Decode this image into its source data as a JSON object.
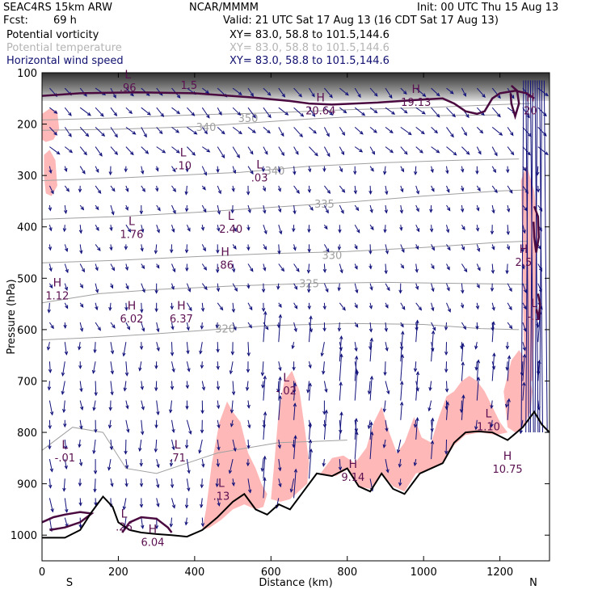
{
  "header": {
    "model": "SEAC4RS 15km ARW",
    "org": "NCAR/MMMM",
    "init": "Init: 00 UTC Thu 15 Aug 13",
    "fcst_label": "Fcst:",
    "fcst_value": "69 h",
    "valid": "Valid: 21 UTC Sat 17 Aug 13 (16 CDT Sat 17 Aug 13)",
    "fields": [
      {
        "name": "Potential vorticity",
        "xy": "XY=  83.0, 58.8 to 101.5,144.6",
        "color": "#000000"
      },
      {
        "name": "Potential temperature",
        "xy": "XY=  83.0, 58.8 to 101.5,144.6",
        "color": "#b4b4b4"
      },
      {
        "name": "Horizontal wind speed",
        "xy": "XY=  83.0, 58.8 to 101.5,144.6",
        "color": "#101070"
      }
    ]
  },
  "chart_data": {
    "type": "cross-section",
    "xlabel": "Distance (km)",
    "ylabel": "Pressure (hPa)",
    "x_range": [
      0,
      1330
    ],
    "y_range": [
      1050,
      100
    ],
    "x_ticks": [
      0,
      200,
      400,
      600,
      800,
      1000,
      1200
    ],
    "y_ticks": [
      100,
      200,
      300,
      400,
      500,
      600,
      700,
      800,
      900,
      1000
    ],
    "endpoints": {
      "left": "S",
      "right": "N"
    },
    "colors": {
      "terrain": "#000000",
      "theta": "#a0a0a0",
      "wind": "#10107a",
      "pv_line": "#4a0a40",
      "pv_label": "#5a1050",
      "shade": "#ffb8b8"
    },
    "theta_contours": [
      {
        "value": "350",
        "label_at": [
          540,
          188
        ],
        "pts": [
          [
            0,
            192
          ],
          [
            200,
            188
          ],
          [
            400,
            182
          ],
          [
            600,
            178
          ],
          [
            800,
            172
          ],
          [
            1000,
            168
          ],
          [
            1200,
            162
          ],
          [
            1280,
            160
          ]
        ]
      },
      {
        "value": "340",
        "label_at": [
          430,
          205
        ],
        "pts": [
          [
            0,
            212
          ],
          [
            200,
            210
          ],
          [
            400,
            205
          ],
          [
            600,
            195
          ],
          [
            700,
            190
          ],
          [
            800,
            186
          ],
          [
            1000,
            184
          ],
          [
            1200,
            182
          ]
        ]
      },
      {
        "value": "340",
        "label_at": [
          610,
          290
        ],
        "pts": [
          [
            0,
            310
          ],
          [
            200,
            305
          ],
          [
            400,
            298
          ],
          [
            520,
            294
          ],
          [
            700,
            282
          ],
          [
            900,
            275
          ],
          [
            1100,
            270
          ],
          [
            1250,
            268
          ]
        ]
      },
      {
        "value": "335",
        "label_at": [
          740,
          355
        ],
        "pts": [
          [
            0,
            385
          ],
          [
            200,
            380
          ],
          [
            400,
            372
          ],
          [
            600,
            362
          ],
          [
            800,
            352
          ],
          [
            1000,
            340
          ],
          [
            1200,
            330
          ],
          [
            1270,
            328
          ]
        ]
      },
      {
        "value": "330",
        "label_at": [
          760,
          455
        ],
        "pts": [
          [
            0,
            470
          ],
          [
            200,
            465
          ],
          [
            400,
            458
          ],
          [
            600,
            452
          ],
          [
            800,
            448
          ],
          [
            1000,
            440
          ],
          [
            1200,
            430
          ],
          [
            1270,
            428
          ]
        ]
      },
      {
        "value": "325",
        "label_at": [
          700,
          510
        ],
        "pts": [
          [
            0,
            548
          ],
          [
            150,
            530
          ],
          [
            300,
            522
          ],
          [
            500,
            515
          ],
          [
            700,
            510
          ],
          [
            900,
            508
          ],
          [
            1100,
            510
          ],
          [
            1270,
            512
          ]
        ]
      },
      {
        "value": "320",
        "label_at": [
          480,
          598
        ],
        "pts": [
          [
            0,
            620
          ],
          [
            150,
            615
          ],
          [
            300,
            608
          ],
          [
            450,
            600
          ],
          [
            600,
            592
          ],
          [
            800,
            588
          ],
          [
            1000,
            590
          ],
          [
            1150,
            598
          ],
          [
            1250,
            600
          ]
        ]
      },
      {
        "value": "",
        "label_at": [
          0,
          0
        ],
        "pts": [
          [
            0,
            835
          ],
          [
            80,
            790
          ],
          [
            160,
            800
          ],
          [
            220,
            870
          ],
          [
            300,
            880
          ],
          [
            380,
            860
          ],
          [
            460,
            840
          ],
          [
            540,
            830
          ],
          [
            620,
            820
          ],
          [
            700,
            818
          ],
          [
            800,
            815
          ]
        ]
      }
    ],
    "terrain": [
      [
        0,
        1005
      ],
      [
        60,
        1005
      ],
      [
        100,
        990
      ],
      [
        130,
        955
      ],
      [
        160,
        925
      ],
      [
        185,
        945
      ],
      [
        200,
        975
      ],
      [
        230,
        990
      ],
      [
        260,
        995
      ],
      [
        300,
        998
      ],
      [
        340,
        1000
      ],
      [
        380,
        1003
      ],
      [
        420,
        990
      ],
      [
        460,
        965
      ],
      [
        500,
        935
      ],
      [
        530,
        920
      ],
      [
        560,
        950
      ],
      [
        590,
        960
      ],
      [
        620,
        940
      ],
      [
        650,
        950
      ],
      [
        680,
        920
      ],
      [
        720,
        880
      ],
      [
        760,
        885
      ],
      [
        800,
        870
      ],
      [
        830,
        905
      ],
      [
        860,
        915
      ],
      [
        890,
        880
      ],
      [
        920,
        910
      ],
      [
        950,
        920
      ],
      [
        990,
        880
      ],
      [
        1020,
        870
      ],
      [
        1050,
        860
      ],
      [
        1080,
        820
      ],
      [
        1110,
        800
      ],
      [
        1140,
        798
      ],
      [
        1180,
        800
      ],
      [
        1220,
        815
      ],
      [
        1260,
        790
      ],
      [
        1290,
        760
      ],
      [
        1310,
        785
      ],
      [
        1330,
        800
      ]
    ],
    "shaded": [
      [
        [
          420,
          990
        ],
        [
          430,
          950
        ],
        [
          445,
          860
        ],
        [
          465,
          780
        ],
        [
          485,
          740
        ],
        [
          500,
          760
        ],
        [
          520,
          780
        ],
        [
          540,
          840
        ],
        [
          560,
          870
        ],
        [
          575,
          900
        ],
        [
          590,
          920
        ],
        [
          580,
          945
        ],
        [
          560,
          950
        ],
        [
          530,
          940
        ],
        [
          500,
          950
        ],
        [
          470,
          970
        ],
        [
          440,
          985
        ]
      ],
      [
        [
          600,
          930
        ],
        [
          610,
          850
        ],
        [
          620,
          760
        ],
        [
          635,
          700
        ],
        [
          655,
          680
        ],
        [
          675,
          720
        ],
        [
          690,
          800
        ],
        [
          700,
          860
        ],
        [
          695,
          900
        ],
        [
          680,
          910
        ],
        [
          650,
          930
        ],
        [
          625,
          935
        ]
      ],
      [
        [
          730,
          880
        ],
        [
          760,
          850
        ],
        [
          790,
          845
        ],
        [
          820,
          860
        ],
        [
          850,
          830
        ],
        [
          870,
          780
        ],
        [
          890,
          750
        ],
        [
          910,
          800
        ],
        [
          930,
          840
        ],
        [
          950,
          820
        ],
        [
          975,
          770
        ],
        [
          995,
          810
        ],
        [
          1020,
          820
        ],
        [
          1040,
          770
        ],
        [
          1060,
          730
        ],
        [
          1080,
          720
        ],
        [
          1100,
          700
        ],
        [
          1120,
          690
        ],
        [
          1140,
          700
        ],
        [
          1160,
          720
        ],
        [
          1180,
          750
        ],
        [
          1200,
          780
        ],
        [
          1220,
          800
        ],
        [
          1190,
          805
        ],
        [
          1150,
          800
        ],
        [
          1110,
          805
        ],
        [
          1080,
          825
        ],
        [
          1050,
          860
        ],
        [
          1010,
          875
        ],
        [
          980,
          880
        ],
        [
          950,
          915
        ],
        [
          920,
          905
        ],
        [
          890,
          880
        ],
        [
          860,
          910
        ],
        [
          830,
          905
        ],
        [
          800,
          872
        ],
        [
          770,
          885
        ]
      ],
      [
        [
          1210,
          720
        ],
        [
          1230,
          660
        ],
        [
          1250,
          640
        ],
        [
          1270,
          660
        ],
        [
          1285,
          720
        ],
        [
          1280,
          760
        ],
        [
          1260,
          790
        ],
        [
          1240,
          800
        ],
        [
          1220,
          790
        ]
      ],
      [
        [
          1255,
          310
        ],
        [
          1270,
          280
        ],
        [
          1290,
          330
        ],
        [
          1300,
          400
        ],
        [
          1295,
          500
        ],
        [
          1290,
          600
        ],
        [
          1285,
          700
        ],
        [
          1265,
          700
        ],
        [
          1262,
          600
        ],
        [
          1260,
          500
        ],
        [
          1258,
          400
        ]
      ],
      [
        [
          0,
          180
        ],
        [
          20,
          170
        ],
        [
          40,
          175
        ],
        [
          45,
          210
        ],
        [
          30,
          230
        ],
        [
          10,
          235
        ],
        [
          0,
          230
        ]
      ],
      [
        [
          5,
          260
        ],
        [
          20,
          250
        ],
        [
          35,
          270
        ],
        [
          40,
          320
        ],
        [
          25,
          340
        ],
        [
          10,
          335
        ],
        [
          5,
          300
        ]
      ]
    ],
    "pv_contours": [
      {
        "pts": [
          [
            0,
            145
          ],
          [
            100,
            140
          ],
          [
            250,
            138
          ],
          [
            400,
            140
          ],
          [
            550,
            148
          ],
          [
            650,
            155
          ],
          [
            700,
            160
          ],
          [
            760,
            162
          ],
          [
            820,
            160
          ],
          [
            880,
            158
          ],
          [
            940,
            155
          ],
          [
            1000,
            152
          ],
          [
            1050,
            150
          ],
          [
            1080,
            160
          ],
          [
            1110,
            175
          ],
          [
            1140,
            180
          ],
          [
            1160,
            175
          ],
          [
            1180,
            150
          ],
          [
            1200,
            140
          ],
          [
            1240,
            135
          ],
          [
            1270,
            140
          ],
          [
            1290,
            150
          ]
        ]
      },
      {
        "pts": [
          [
            1230,
            125
          ],
          [
            1245,
            135
          ],
          [
            1250,
            160
          ],
          [
            1240,
            185
          ],
          [
            1230,
            160
          ],
          [
            1228,
            140
          ]
        ]
      },
      {
        "pts": [
          [
            1290,
            360
          ],
          [
            1300,
            380
          ],
          [
            1302,
            420
          ],
          [
            1295,
            450
          ],
          [
            1290,
            420
          ],
          [
            1288,
            390
          ]
        ]
      },
      {
        "pts": [
          [
            1300,
            530
          ],
          [
            1305,
            550
          ],
          [
            1302,
            580
          ],
          [
            1296,
            560
          ]
        ]
      },
      {
        "pts": [
          [
            0,
            975
          ],
          [
            30,
            965
          ],
          [
            60,
            960
          ],
          [
            100,
            955
          ],
          [
            130,
            958
          ],
          [
            100,
            975
          ],
          [
            60,
            985
          ],
          [
            20,
            990
          ]
        ]
      },
      {
        "pts": [
          [
            210,
            995
          ],
          [
            230,
            975
          ],
          [
            260,
            965
          ],
          [
            300,
            968
          ],
          [
            330,
            985
          ],
          [
            340,
            995
          ]
        ]
      }
    ],
    "field_labels": [
      {
        "kind": "L",
        "value": ".96",
        "pos": [
          225,
          130
        ]
      },
      {
        "kind": "",
        "value": "1.5",
        "pos": [
          385,
          125
        ]
      },
      {
        "kind": "H",
        "value": "20.64",
        "pos": [
          730,
          175
        ]
      },
      {
        "kind": "H",
        "value": "19.13",
        "pos": [
          980,
          158
        ]
      },
      {
        "kind": "H",
        "value": "20",
        "pos": [
          1280,
          175
        ]
      },
      {
        "kind": "L",
        "value": ".10",
        "pos": [
          370,
          282
        ]
      },
      {
        "kind": "L",
        "value": ".03",
        "pos": [
          570,
          305
        ]
      },
      {
        "kind": "L",
        "value": "1.76",
        "pos": [
          235,
          415
        ]
      },
      {
        "kind": "L",
        "value": "2.40",
        "pos": [
          495,
          405
        ]
      },
      {
        "kind": "H",
        "value": ".86",
        "pos": [
          480,
          475
        ]
      },
      {
        "kind": "H",
        "value": "2.5",
        "pos": [
          1262,
          470
        ]
      },
      {
        "kind": "H",
        "value": "1.12",
        "pos": [
          40,
          535
        ]
      },
      {
        "kind": "H",
        "value": "6.02",
        "pos": [
          235,
          580
        ]
      },
      {
        "kind": "H",
        "value": "6.37",
        "pos": [
          365,
          580
        ]
      },
      {
        "kind": "L",
        "value": "-.1",
        "pos": [
          1290,
          575
        ]
      },
      {
        "kind": "L",
        "value": "-.02",
        "pos": [
          640,
          720
        ]
      },
      {
        "kind": "L",
        "value": "1.10",
        "pos": [
          1170,
          790
        ]
      },
      {
        "kind": "L",
        "value": "-.01",
        "pos": [
          60,
          850
        ]
      },
      {
        "kind": "L",
        "value": ".71",
        "pos": [
          355,
          850
        ]
      },
      {
        "kind": "H",
        "value": "9.14",
        "pos": [
          815,
          888
        ]
      },
      {
        "kind": "H",
        "value": "10.75",
        "pos": [
          1220,
          872
        ]
      },
      {
        "kind": "L",
        "value": ".13",
        "pos": [
          470,
          925
        ]
      },
      {
        "kind": "L",
        "value": ".26",
        "pos": [
          215,
          985
        ]
      },
      {
        "kind": "H",
        "value": "6.04",
        "pos": [
          290,
          1015
        ]
      }
    ]
  }
}
